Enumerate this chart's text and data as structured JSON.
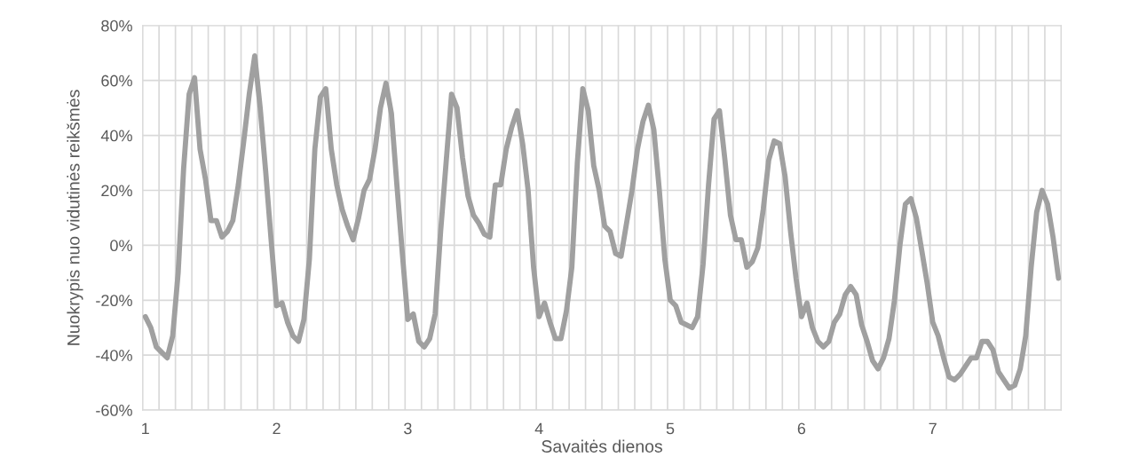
{
  "chart_data": {
    "type": "line",
    "xlabel": "Savaitės dienos",
    "ylabel": "Nuokrypis nuo vidutinės reikšmės",
    "categories": [
      "1",
      null,
      null,
      null,
      null,
      null,
      null,
      null,
      null,
      null,
      null,
      null,
      null,
      null,
      null,
      null,
      null,
      null,
      null,
      null,
      null,
      null,
      null,
      null,
      "2",
      null,
      null,
      null,
      null,
      null,
      null,
      null,
      null,
      null,
      null,
      null,
      null,
      null,
      null,
      null,
      null,
      null,
      null,
      null,
      null,
      null,
      null,
      null,
      "3",
      null,
      null,
      null,
      null,
      null,
      null,
      null,
      null,
      null,
      null,
      null,
      null,
      null,
      null,
      null,
      null,
      null,
      null,
      null,
      null,
      null,
      null,
      null,
      "4",
      null,
      null,
      null,
      null,
      null,
      null,
      null,
      null,
      null,
      null,
      null,
      null,
      null,
      null,
      null,
      null,
      null,
      null,
      null,
      null,
      null,
      null,
      null,
      "5",
      null,
      null,
      null,
      null,
      null,
      null,
      null,
      null,
      null,
      null,
      null,
      null,
      null,
      null,
      null,
      null,
      null,
      null,
      null,
      null,
      null,
      null,
      null,
      "6",
      null,
      null,
      null,
      null,
      null,
      null,
      null,
      null,
      null,
      null,
      null,
      null,
      null,
      null,
      null,
      null,
      null,
      null,
      null,
      null,
      null,
      null,
      null,
      "7",
      null,
      null,
      null,
      null,
      null,
      null,
      null,
      null,
      null,
      null,
      null,
      null,
      null,
      null,
      null,
      null,
      null,
      null,
      null,
      null,
      null,
      null,
      null
    ],
    "series": [
      {
        "color": "#a0a0a0",
        "values": [
          -26,
          -30,
          -37,
          -39,
          -41,
          -33,
          -10,
          28,
          55,
          61,
          35,
          24,
          9,
          9,
          3,
          5,
          9,
          22,
          38,
          55,
          69,
          50,
          27,
          2,
          -22,
          -21,
          -28,
          -33,
          -35,
          -27,
          -5,
          35,
          54,
          57,
          35,
          22,
          13,
          7,
          2,
          10,
          20,
          24,
          35,
          50,
          59,
          48,
          22,
          -3,
          -27,
          -25,
          -35,
          -37,
          -34,
          -25,
          5,
          30,
          55,
          50,
          32,
          18,
          11,
          8,
          4,
          3,
          22,
          22,
          35,
          43,
          49,
          37,
          20,
          -8,
          -26,
          -21,
          -28,
          -34,
          -34,
          -24,
          -8,
          30,
          57,
          49,
          29,
          20,
          7,
          5,
          -3,
          -4,
          8,
          20,
          35,
          45,
          51,
          42,
          20,
          -5,
          -20,
          -22,
          -28,
          -29,
          -30,
          -26,
          -7,
          22,
          46,
          49,
          31,
          11,
          2,
          2,
          -8,
          -6,
          -1,
          13,
          31,
          38,
          37,
          25,
          5,
          -12,
          -26,
          -21,
          -30,
          -35,
          -37,
          -35,
          -28,
          -25,
          -18,
          -15,
          -18,
          -29,
          -35,
          -42,
          -45,
          -41,
          -34,
          -20,
          0,
          15,
          17,
          10,
          -2,
          -14,
          -28,
          -33,
          -41,
          -48,
          -49,
          -47,
          -44,
          -41,
          -41,
          -35,
          -35,
          -38,
          -46,
          -49,
          -52,
          -51,
          -45,
          -33,
          -8,
          12,
          20,
          15,
          3,
          -12
        ]
      }
    ],
    "ylim": [
      -60,
      80
    ],
    "yticks": [
      {
        "value": -60,
        "label": "-60%"
      },
      {
        "value": -40,
        "label": "-40%"
      },
      {
        "value": -20,
        "label": "-20%"
      },
      {
        "value": 0,
        "label": "0%"
      },
      {
        "value": 20,
        "label": "20%"
      },
      {
        "value": 40,
        "label": "40%"
      },
      {
        "value": 60,
        "label": "60%"
      },
      {
        "value": 80,
        "label": "80%"
      }
    ],
    "grid": true,
    "line_style": "solid",
    "marker": "none"
  }
}
